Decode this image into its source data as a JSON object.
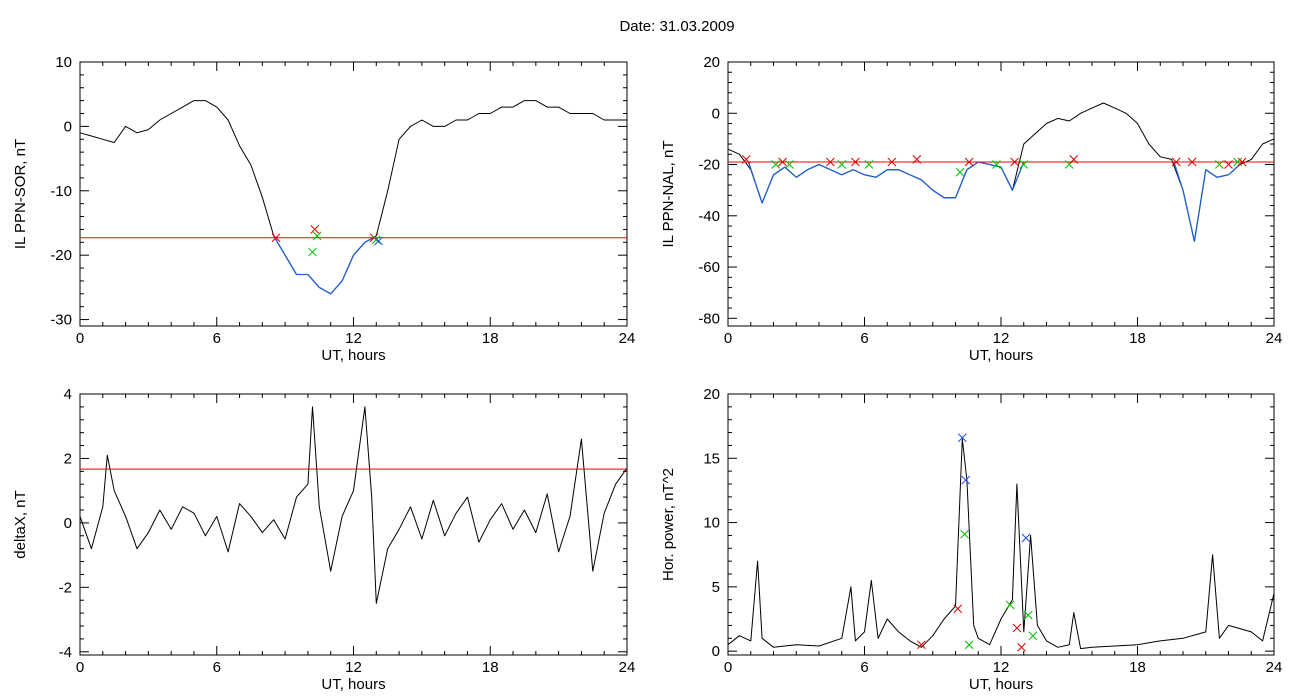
{
  "title": "Date:  31.03.2009",
  "colors": {
    "trace": "#000000",
    "highlight": "#1f5fd0",
    "threshold": "#ff0000",
    "marker_red": "#e00000",
    "marker_green": "#00c000",
    "marker_blue": "#2050e0"
  },
  "chart_data": [
    {
      "type": "line",
      "xlabel": "UT, hours",
      "ylabel": "IL PPN-SOR, nT",
      "xlim": [
        0,
        24
      ],
      "ylim": [
        -31,
        10
      ],
      "xticks": [
        0,
        6,
        12,
        18,
        24
      ],
      "yticks": [
        10,
        0,
        -10,
        -20,
        -30
      ],
      "series": [
        {
          "style": "trace",
          "x": [
            0,
            0.5,
            1,
            1.5,
            2,
            2.5,
            3,
            3.5,
            4,
            4.5,
            5,
            5.5,
            6,
            6.5,
            7,
            7.5,
            8,
            8.5,
            9,
            9.5,
            10,
            10.5,
            11,
            11.5,
            12,
            12.5,
            13,
            13.5,
            14,
            14.5,
            15,
            15.5,
            16,
            16.5,
            17,
            17.5,
            18,
            18.5,
            19,
            19.5,
            20,
            20.5,
            21,
            21.5,
            22,
            22.5,
            23,
            23.5,
            24
          ],
          "y": [
            -1,
            -1.5,
            -2,
            -2.5,
            0,
            -1,
            -0.5,
            1,
            2,
            3,
            4,
            4,
            3,
            1,
            -3,
            -6,
            -11,
            -17,
            -20,
            -23,
            -23,
            -25,
            -26,
            -24,
            -20,
            -18,
            -17,
            -10,
            -2,
            0,
            1,
            0,
            0,
            1,
            1,
            2,
            2,
            3,
            3,
            4,
            4,
            3,
            3,
            2,
            2,
            2,
            1,
            1,
            1
          ]
        },
        {
          "style": "highlight",
          "x": [
            8.5,
            9,
            9.5,
            10,
            10.5,
            11,
            11.5,
            12,
            12.5,
            13
          ],
          "y": [
            -17,
            -20,
            -23,
            -23,
            -25,
            -26,
            -24,
            -20,
            -18,
            -17
          ]
        },
        {
          "style": "threshold",
          "x": [
            0,
            24
          ],
          "y": [
            -17.3,
            -17.3
          ]
        }
      ],
      "markers": [
        {
          "x": 8.6,
          "y": -17.3,
          "color": "red"
        },
        {
          "x": 10.3,
          "y": -16,
          "color": "red"
        },
        {
          "x": 10.2,
          "y": -19.5,
          "color": "green"
        },
        {
          "x": 10.4,
          "y": -17,
          "color": "green"
        },
        {
          "x": 12.9,
          "y": -17.3,
          "color": "red"
        },
        {
          "x": 13.0,
          "y": -17.6,
          "color": "green"
        },
        {
          "x": 13.1,
          "y": -17.8,
          "color": "blue"
        }
      ]
    },
    {
      "type": "line",
      "xlabel": "UT, hours",
      "ylabel": "IL PPN-NAL, nT",
      "xlim": [
        0,
        24
      ],
      "ylim": [
        -83,
        20
      ],
      "xticks": [
        0,
        6,
        12,
        18,
        24
      ],
      "yticks": [
        20,
        0,
        -20,
        -40,
        -60,
        -80
      ],
      "series": [
        {
          "style": "trace",
          "x": [
            0,
            0.5,
            1,
            1.5,
            2,
            2.5,
            3,
            3.5,
            4,
            4.5,
            5,
            5.5,
            6,
            6.5,
            7,
            7.5,
            8,
            8.5,
            9,
            9.5,
            10,
            10.5,
            11,
            11.5,
            12,
            12.5,
            13,
            13.5,
            14,
            14.5,
            15,
            15.5,
            16,
            16.5,
            17,
            17.5,
            18,
            18.5,
            19,
            19.5,
            20,
            20.5,
            21,
            21.5,
            22,
            22.5,
            23,
            23.5,
            24
          ],
          "y": [
            -14,
            -16,
            -22,
            -35,
            -24,
            -21,
            -25,
            -22,
            -20,
            -22,
            -24,
            -22,
            -24,
            -25,
            -22,
            -22,
            -24,
            -26,
            -30,
            -33,
            -33,
            -22,
            -19,
            -20,
            -21,
            -30,
            -12,
            -8,
            -4,
            -2,
            -3,
            0,
            2,
            4,
            2,
            0,
            -4,
            -12,
            -17,
            -18,
            -30,
            -50,
            -22,
            -25,
            -24,
            -20,
            -18,
            -12,
            -10
          ]
        },
        {
          "style": "highlight",
          "x": [
            0.9,
            1.5,
            2,
            2.5,
            3,
            3.5,
            4,
            4.5,
            5,
            5.5,
            6,
            6.5,
            7,
            7.5,
            8,
            8.5,
            9,
            9.5,
            10,
            10.5,
            11,
            11.5,
            12,
            12.5,
            13
          ],
          "y": [
            -19,
            -35,
            -24,
            -21,
            -25,
            -22,
            -20,
            -22,
            -24,
            -22,
            -24,
            -25,
            -22,
            -22,
            -24,
            -26,
            -30,
            -33,
            -33,
            -22,
            -19,
            -20,
            -21,
            -30,
            -19
          ]
        },
        {
          "style": "highlight",
          "x": [
            19.6,
            20,
            20.5,
            21,
            21.5,
            22,
            22.5
          ],
          "y": [
            -19,
            -30,
            -50,
            -22,
            -25,
            -24,
            -20
          ]
        },
        {
          "style": "threshold",
          "x": [
            0,
            24
          ],
          "y": [
            -19,
            -19
          ]
        }
      ],
      "markers": [
        {
          "x": 0.8,
          "y": -18,
          "color": "red"
        },
        {
          "x": 2.1,
          "y": -20,
          "color": "green"
        },
        {
          "x": 2.4,
          "y": -19,
          "color": "red"
        },
        {
          "x": 2.7,
          "y": -20,
          "color": "green"
        },
        {
          "x": 4.5,
          "y": -19,
          "color": "red"
        },
        {
          "x": 5.0,
          "y": -20,
          "color": "green"
        },
        {
          "x": 5.6,
          "y": -19,
          "color": "red"
        },
        {
          "x": 6.2,
          "y": -20,
          "color": "green"
        },
        {
          "x": 7.2,
          "y": -19,
          "color": "red"
        },
        {
          "x": 8.3,
          "y": -18,
          "color": "red"
        },
        {
          "x": 10.2,
          "y": -23,
          "color": "green"
        },
        {
          "x": 10.6,
          "y": -19,
          "color": "red"
        },
        {
          "x": 11.8,
          "y": -20,
          "color": "green"
        },
        {
          "x": 12.6,
          "y": -19,
          "color": "red"
        },
        {
          "x": 13.0,
          "y": -20,
          "color": "green"
        },
        {
          "x": 15.0,
          "y": -20,
          "color": "green"
        },
        {
          "x": 15.2,
          "y": -18,
          "color": "red"
        },
        {
          "x": 19.7,
          "y": -19,
          "color": "red"
        },
        {
          "x": 20.4,
          "y": -19,
          "color": "red"
        },
        {
          "x": 21.6,
          "y": -20,
          "color": "green"
        },
        {
          "x": 22.0,
          "y": -20,
          "color": "red"
        },
        {
          "x": 22.4,
          "y": -19,
          "color": "green"
        },
        {
          "x": 22.6,
          "y": -19,
          "color": "red"
        }
      ]
    },
    {
      "type": "line",
      "xlabel": "UT, hours",
      "ylabel": "deltaX, nT",
      "xlim": [
        0,
        24
      ],
      "ylim": [
        -4.1,
        4
      ],
      "xticks": [
        0,
        6,
        12,
        18,
        24
      ],
      "yticks": [
        4,
        2,
        0,
        -2,
        -4
      ],
      "series": [
        {
          "style": "trace",
          "x": [
            0,
            0.5,
            1,
            1.2,
            1.5,
            2,
            2.5,
            3,
            3.5,
            4,
            4.5,
            5,
            5.5,
            6,
            6.5,
            7,
            7.5,
            8,
            8.5,
            9,
            9.5,
            10,
            10.2,
            10.5,
            11,
            11.5,
            12,
            12.5,
            12.8,
            13,
            13.5,
            14,
            14.5,
            15,
            15.5,
            16,
            16.5,
            17,
            17.5,
            18,
            18.5,
            19,
            19.5,
            20,
            20.5,
            21,
            21.5,
            22,
            22.5,
            23,
            23.5,
            24
          ],
          "y": [
            0.2,
            -0.8,
            0.5,
            2.1,
            1.0,
            0.2,
            -0.8,
            -0.3,
            0.4,
            -0.2,
            0.5,
            0.3,
            -0.4,
            0.2,
            -0.9,
            0.6,
            0.2,
            -0.3,
            0.1,
            -0.5,
            0.8,
            1.2,
            3.6,
            0.5,
            -1.5,
            0.2,
            1.0,
            3.6,
            0.8,
            -2.5,
            -0.8,
            -0.2,
            0.5,
            -0.5,
            0.7,
            -0.4,
            0.3,
            0.8,
            -0.6,
            0.1,
            0.6,
            -0.2,
            0.4,
            -0.3,
            0.9,
            -0.9,
            0.2,
            2.6,
            -1.5,
            0.3,
            1.2,
            1.7
          ]
        },
        {
          "style": "threshold",
          "x": [
            0,
            24
          ],
          "y": [
            1.67,
            1.67
          ]
        }
      ],
      "markers": []
    },
    {
      "type": "line",
      "xlabel": "UT, hours",
      "ylabel": "Hor. power, nT^2",
      "xlim": [
        0,
        24
      ],
      "ylim": [
        -0.3,
        20
      ],
      "xticks": [
        0,
        6,
        12,
        18,
        24
      ],
      "yticks": [
        20,
        15,
        10,
        5,
        0
      ],
      "series": [
        {
          "style": "trace",
          "x": [
            0,
            0.5,
            1,
            1.3,
            1.5,
            2,
            3,
            4,
            5,
            5.4,
            5.6,
            6,
            6.3,
            6.6,
            7,
            7.5,
            8,
            8.5,
            9,
            9.5,
            10,
            10.3,
            10.5,
            10.8,
            11,
            11.5,
            12,
            12.5,
            12.7,
            13,
            13.3,
            13.6,
            14,
            14.5,
            15,
            15.2,
            15.5,
            16,
            17,
            18,
            19,
            20,
            21,
            21.3,
            21.6,
            22,
            23,
            23.5,
            24
          ],
          "y": [
            0.5,
            1.2,
            0.8,
            7,
            1.0,
            0.3,
            0.5,
            0.4,
            1.0,
            5,
            0.8,
            1.5,
            5.5,
            1.0,
            2.5,
            1.5,
            0.8,
            0.3,
            1.2,
            2.5,
            3.5,
            16.5,
            13.3,
            2.0,
            1.0,
            0.5,
            2.5,
            4,
            13,
            1.5,
            9,
            2,
            0.8,
            0.3,
            0.5,
            3,
            0.2,
            0.3,
            0.4,
            0.5,
            0.8,
            1.0,
            1.5,
            7.5,
            1.0,
            2.0,
            1.5,
            0.8,
            4.5
          ]
        }
      ],
      "markers": [
        {
          "x": 8.5,
          "y": 0.5,
          "color": "red"
        },
        {
          "x": 10.1,
          "y": 3.3,
          "color": "red"
        },
        {
          "x": 10.3,
          "y": 16.6,
          "color": "blue"
        },
        {
          "x": 10.45,
          "y": 13.3,
          "color": "blue"
        },
        {
          "x": 10.4,
          "y": 9.1,
          "color": "green"
        },
        {
          "x": 10.6,
          "y": 0.5,
          "color": "green"
        },
        {
          "x": 12.4,
          "y": 3.6,
          "color": "green"
        },
        {
          "x": 12.7,
          "y": 1.8,
          "color": "red"
        },
        {
          "x": 12.9,
          "y": 0.3,
          "color": "red"
        },
        {
          "x": 13.1,
          "y": 8.8,
          "color": "blue"
        },
        {
          "x": 13.2,
          "y": 2.8,
          "color": "green"
        },
        {
          "x": 13.4,
          "y": 1.2,
          "color": "green"
        }
      ]
    }
  ]
}
